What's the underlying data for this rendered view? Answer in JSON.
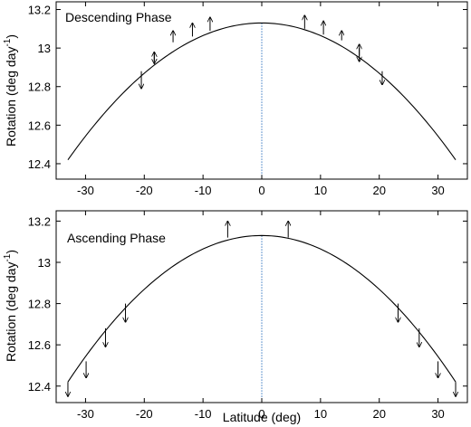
{
  "chart_data": [
    {
      "type": "line",
      "title": "Descending Phase",
      "xlabel": "",
      "ylabel": "Rotation (deg day",
      "ylabel_sup": "-1",
      "ylabel_tail": ")",
      "xlim": [
        -35,
        35
      ],
      "ylim": [
        12.32,
        13.24
      ],
      "xticks": [
        -30,
        -20,
        -10,
        0,
        10,
        20,
        30
      ],
      "yticks": [
        12.4,
        12.6,
        12.8,
        13,
        13.2
      ],
      "ytick_labels": [
        "12.4",
        "12.6",
        "12.8",
        "13",
        "13.2"
      ],
      "grid": false,
      "curve": {
        "peak": 13.13,
        "x": [
          -33,
          -30,
          -25,
          -20,
          -15,
          -10,
          -5,
          0,
          5,
          10,
          15,
          20,
          25,
          30,
          33
        ],
        "y": [
          12.42,
          12.52,
          12.67,
          12.8,
          12.92,
          13.02,
          13.09,
          13.13,
          13.09,
          13.02,
          12.92,
          12.8,
          12.67,
          12.52,
          12.42
        ]
      },
      "vline_x": 0,
      "vline_ylim": [
        12.34,
        13.13
      ],
      "arrows": [
        {
          "x": -20.5,
          "y0": 12.88,
          "y1": 12.79
        },
        {
          "x": -18.3,
          "y0": 12.93,
          "y1": 12.98
        },
        {
          "x": -18.3,
          "y0": 12.98,
          "y1": 12.92
        },
        {
          "x": -15.1,
          "y0": 13.03,
          "y1": 13.09
        },
        {
          "x": -11.8,
          "y0": 13.06,
          "y1": 13.13
        },
        {
          "x": -8.8,
          "y0": 13.09,
          "y1": 13.16
        },
        {
          "x": 7.3,
          "y0": 13.1,
          "y1": 13.17
        },
        {
          "x": 10.5,
          "y0": 13.07,
          "y1": 13.14
        },
        {
          "x": 13.6,
          "y0": 13.04,
          "y1": 13.09
        },
        {
          "x": 16.6,
          "y0": 12.96,
          "y1": 13.02
        },
        {
          "x": 16.6,
          "y0": 13.0,
          "y1": 12.93
        },
        {
          "x": 20.5,
          "y0": 12.88,
          "y1": 12.81
        }
      ]
    },
    {
      "type": "line",
      "title": "Ascending Phase",
      "xlabel": "Latitude (deg)",
      "ylabel": "Rotation (deg day",
      "ylabel_sup": "-1",
      "ylabel_tail": ")",
      "xlim": [
        -35,
        35
      ],
      "ylim": [
        12.32,
        13.25
      ],
      "xticks": [
        -30,
        -20,
        -10,
        0,
        10,
        20,
        30
      ],
      "yticks": [
        12.4,
        12.6,
        12.8,
        13,
        13.2
      ],
      "ytick_labels": [
        "12.4",
        "12.6",
        "12.8",
        "13",
        "13.2"
      ],
      "grid": false,
      "curve": {
        "peak": 13.13,
        "x": [
          -33,
          -30,
          -25,
          -20,
          -15,
          -10,
          -5,
          0,
          5,
          10,
          15,
          20,
          25,
          30,
          33
        ],
        "y": [
          12.42,
          12.52,
          12.67,
          12.8,
          12.92,
          13.02,
          13.09,
          13.13,
          13.09,
          13.02,
          12.92,
          12.8,
          12.67,
          12.52,
          12.42
        ]
      },
      "vline_x": 0,
      "vline_ylim": [
        12.34,
        13.13
      ],
      "arrows": [
        {
          "x": -33,
          "y0": 12.42,
          "y1": 12.35
        },
        {
          "x": -29.9,
          "y0": 12.52,
          "y1": 12.44
        },
        {
          "x": -26.6,
          "y0": 12.68,
          "y1": 12.59
        },
        {
          "x": -23.2,
          "y0": 12.8,
          "y1": 12.71
        },
        {
          "x": -5.8,
          "y0": 13.12,
          "y1": 13.2
        },
        {
          "x": 4.5,
          "y0": 13.12,
          "y1": 13.2
        },
        {
          "x": 23.2,
          "y0": 12.8,
          "y1": 12.71
        },
        {
          "x": 26.8,
          "y0": 12.68,
          "y1": 12.59
        },
        {
          "x": 30.0,
          "y0": 12.52,
          "y1": 12.44
        },
        {
          "x": 33.0,
          "y0": 12.42,
          "y1": 12.35
        }
      ]
    }
  ]
}
